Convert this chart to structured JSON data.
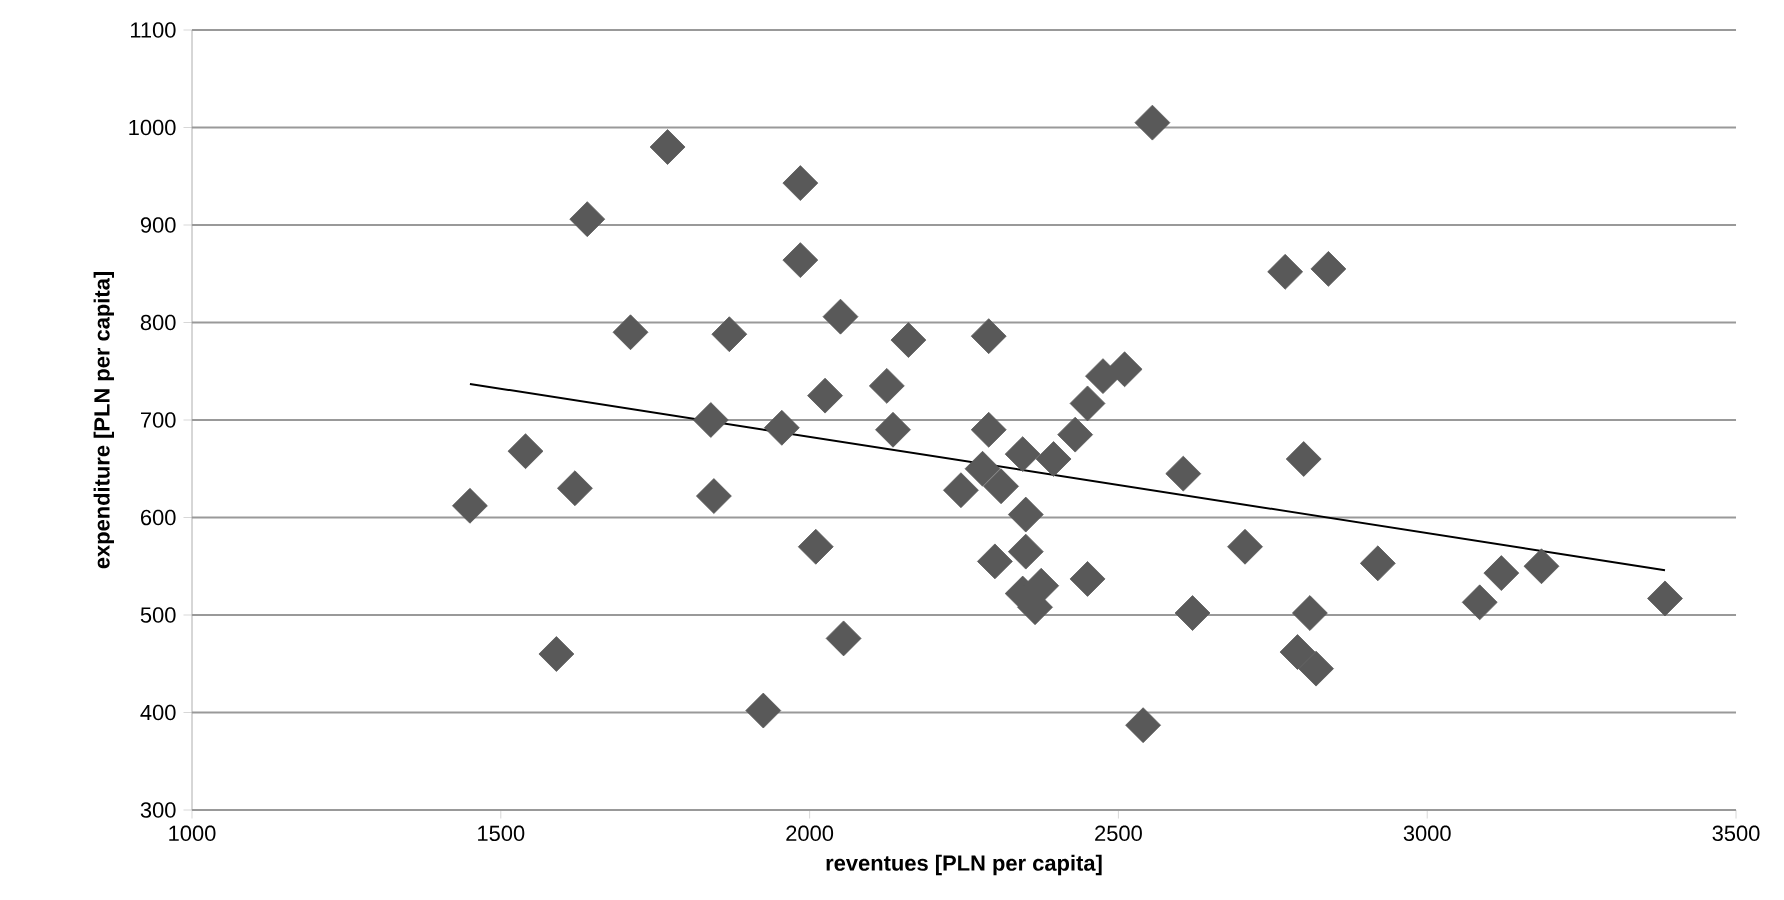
{
  "chart_data": {
    "type": "scatter",
    "xlabel": "reventues [PLN per capita]",
    "ylabel": "expenditure [PLN per capita]",
    "xlim": [
      1000,
      3500
    ],
    "xticks": [
      1000,
      1500,
      2000,
      2500,
      3000,
      3500
    ],
    "ylim": [
      300,
      1100
    ],
    "yticks": [
      300,
      400,
      500,
      600,
      700,
      800,
      900,
      1000,
      1100
    ],
    "grid": "y",
    "marker": "diamond",
    "series": [
      {
        "color": "#595959",
        "x": [
          1450,
          1540,
          1590,
          1620,
          1640,
          1710,
          1770,
          1840,
          1845,
          1870,
          1925,
          1955,
          1985,
          1985,
          2010,
          2025,
          2050,
          2055,
          2125,
          2135,
          2160,
          2245,
          2280,
          2290,
          2290,
          2300,
          2310,
          2345,
          2350,
          2345,
          2350,
          2365,
          2375,
          2395,
          2430,
          2450,
          2450,
          2475,
          2510,
          2540,
          2555,
          2605,
          2620,
          2705,
          2770,
          2790,
          2800,
          2810,
          2820,
          2840,
          2920,
          3085,
          3120,
          3185,
          3385
        ],
        "values": [
          612,
          668,
          460,
          630,
          906,
          790,
          980,
          700,
          622,
          788,
          402,
          692,
          943,
          864,
          570,
          725,
          806,
          476,
          735,
          690,
          782,
          628,
          650,
          786,
          690,
          555,
          632,
          665,
          603,
          522,
          565,
          508,
          530,
          660,
          685,
          537,
          717,
          745,
          752,
          387,
          1005,
          645,
          502,
          570,
          852,
          462,
          660,
          502,
          445,
          855,
          553,
          513,
          543,
          550,
          517
        ]
      },
      {
        "type": "line",
        "color": "#000000",
        "marker": "none",
        "x": [
          1450,
          3385
        ],
        "values": [
          737,
          546
        ]
      }
    ]
  }
}
